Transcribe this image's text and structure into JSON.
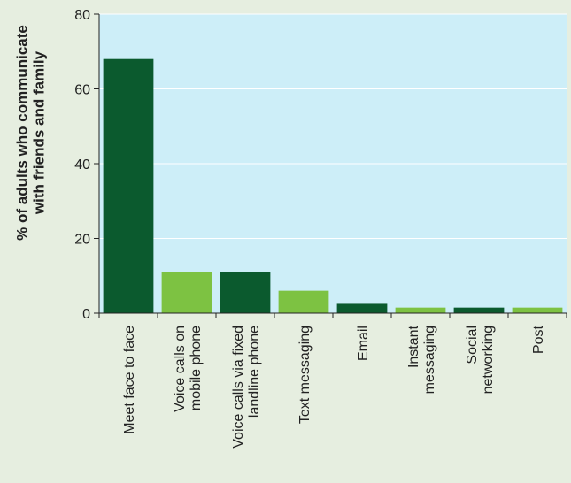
{
  "chart_data": {
    "type": "bar",
    "y_label": "% of adults who communicate\nwith friends and family",
    "categories": [
      "Meet face to face",
      "Voice calls on\nmobile phone",
      "Voice calls via fixed\nlandline phone",
      "Text messaging",
      "Email",
      "Instant\nmessaging",
      "Social\nnetworking",
      "Post"
    ],
    "values": [
      68,
      11,
      11,
      6,
      2.5,
      1.5,
      1.5,
      1.5
    ],
    "colors": [
      "#0b5a2e",
      "#7dc242",
      "#0b5a2e",
      "#7dc242",
      "#0b5a2e",
      "#7dc242",
      "#0b5a2e",
      "#7dc242"
    ],
    "ylim": [
      0,
      80
    ],
    "yticks": [
      0,
      20,
      40,
      60,
      80
    ],
    "grid": true
  }
}
